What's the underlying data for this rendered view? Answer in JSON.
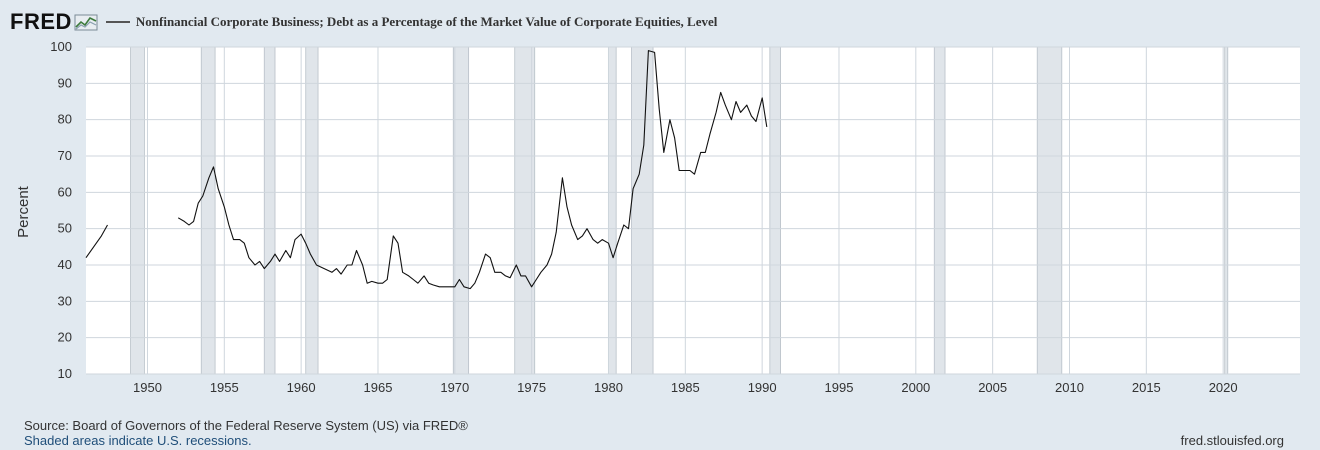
{
  "header": {
    "logo_text": "FRED",
    "logo_icon": "fred-chart-icon",
    "title": "Nonfinancial Corporate Business; Debt as a Percentage of the Market Value of Corporate Equities, Level"
  },
  "footer": {
    "source": "Source: Board of Governors of the Federal Reserve System (US) via FRED®",
    "recession_note": "Shaded areas indicate U.S. recessions.",
    "site": "fred.stlouisfed.org"
  },
  "colors": {
    "background": "#e1e9f0",
    "plot_bg": "#ffffff",
    "line": "#111111",
    "recession": "#e0e5ea",
    "grid": "#cfd6dd"
  },
  "chart_data": {
    "type": "line",
    "title": "Nonfinancial Corporate Business; Debt as a Percentage of the Market Value of Corporate Equities, Level",
    "xlabel": "",
    "ylabel": "Percent",
    "xlim": [
      1946,
      2025
    ],
    "ylim": [
      10,
      100
    ],
    "grid": true,
    "x_ticks": [
      1950,
      1955,
      1960,
      1965,
      1970,
      1975,
      1980,
      1985,
      1990,
      1995,
      2000,
      2005,
      2010,
      2015,
      2020
    ],
    "y_ticks": [
      10,
      20,
      30,
      40,
      50,
      60,
      70,
      80,
      90,
      100
    ],
    "recessions": [
      [
        1948.9,
        1949.8
      ],
      [
        1953.5,
        1954.4
      ],
      [
        1957.6,
        1958.3
      ],
      [
        1960.3,
        1961.1
      ],
      [
        1969.9,
        1970.9
      ],
      [
        1973.9,
        1975.2
      ],
      [
        1980.0,
        1980.5
      ],
      [
        1981.5,
        1982.9
      ],
      [
        1990.5,
        1991.2
      ],
      [
        2001.2,
        2001.9
      ],
      [
        2007.9,
        2009.5
      ],
      [
        2020.1,
        2020.3
      ]
    ],
    "series": [
      {
        "segments": [
          [
            [
              1946.0,
              42
            ],
            [
              1946.5,
              45
            ],
            [
              1947.0,
              48
            ],
            [
              1947.4,
              51
            ]
          ],
          [
            [
              1952.0,
              53
            ],
            [
              1952.4,
              52
            ],
            [
              1952.7,
              51
            ],
            [
              1953.0,
              52
            ],
            [
              1953.3,
              57
            ],
            [
              1953.6,
              59
            ],
            [
              1954.0,
              64
            ],
            [
              1954.3,
              67
            ],
            [
              1954.6,
              61
            ],
            [
              1955.0,
              56
            ],
            [
              1955.3,
              51
            ],
            [
              1955.6,
              47
            ],
            [
              1956.0,
              47
            ],
            [
              1956.3,
              46
            ],
            [
              1956.6,
              42
            ],
            [
              1957.0,
              40
            ],
            [
              1957.3,
              41
            ],
            [
              1957.6,
              39
            ],
            [
              1958.0,
              41
            ],
            [
              1958.3,
              43
            ],
            [
              1958.6,
              41
            ],
            [
              1959.0,
              44
            ],
            [
              1959.3,
              42
            ],
            [
              1959.6,
              47
            ],
            [
              1960.0,
              48.5
            ],
            [
              1960.3,
              46
            ],
            [
              1960.6,
              43
            ],
            [
              1961.0,
              40
            ],
            [
              1961.5,
              39
            ],
            [
              1962.0,
              38
            ],
            [
              1962.3,
              39
            ],
            [
              1962.6,
              37.5
            ],
            [
              1963.0,
              40
            ],
            [
              1963.3,
              40
            ],
            [
              1963.6,
              44
            ],
            [
              1964.0,
              40
            ],
            [
              1964.3,
              35
            ],
            [
              1964.6,
              35.5
            ],
            [
              1965.0,
              35
            ],
            [
              1965.3,
              35
            ],
            [
              1965.6,
              36
            ],
            [
              1966.0,
              48
            ],
            [
              1966.3,
              46
            ],
            [
              1966.6,
              38
            ],
            [
              1967.0,
              37
            ],
            [
              1967.3,
              36
            ],
            [
              1967.6,
              35
            ],
            [
              1968.0,
              37
            ],
            [
              1968.3,
              35
            ],
            [
              1968.6,
              34.5
            ],
            [
              1969.0,
              34
            ],
            [
              1969.5,
              34
            ],
            [
              1970.0,
              34
            ],
            [
              1970.3,
              36
            ],
            [
              1970.6,
              34
            ],
            [
              1971.0,
              33.5
            ],
            [
              1971.3,
              35
            ],
            [
              1971.6,
              38
            ],
            [
              1972.0,
              43
            ],
            [
              1972.3,
              42
            ],
            [
              1972.6,
              38
            ],
            [
              1973.0,
              38
            ],
            [
              1973.3,
              37
            ],
            [
              1973.6,
              36.5
            ],
            [
              1974.0,
              40
            ],
            [
              1974.3,
              37
            ],
            [
              1974.6,
              37
            ],
            [
              1975.0,
              34
            ],
            [
              1975.3,
              36
            ],
            [
              1975.6,
              38
            ],
            [
              1976.0,
              40
            ],
            [
              1976.3,
              43
            ],
            [
              1976.6,
              49
            ],
            [
              1977.0,
              64
            ],
            [
              1977.3,
              56
            ],
            [
              1977.6,
              51
            ],
            [
              1978.0,
              47
            ],
            [
              1978.3,
              48
            ],
            [
              1978.6,
              50
            ],
            [
              1979.0,
              47
            ],
            [
              1979.3,
              46
            ],
            [
              1979.6,
              47
            ],
            [
              1980.0,
              46
            ],
            [
              1980.3,
              42
            ],
            [
              1980.6,
              46
            ],
            [
              1981.0,
              51
            ],
            [
              1981.3,
              50
            ],
            [
              1981.6,
              61
            ],
            [
              1982.0,
              65
            ],
            [
              1982.3,
              73
            ],
            [
              1982.6,
              99
            ],
            [
              1983.0,
              98.5
            ],
            [
              1983.3,
              83
            ],
            [
              1983.6,
              71
            ],
            [
              1984.0,
              80
            ],
            [
              1984.3,
              75
            ],
            [
              1984.6,
              66
            ],
            [
              1985.0,
              66
            ],
            [
              1985.3,
              66
            ],
            [
              1985.6,
              65
            ],
            [
              1986.0,
              71
            ],
            [
              1986.3,
              71
            ],
            [
              1986.6,
              76
            ],
            [
              1987.0,
              82
            ],
            [
              1987.3,
              87.5
            ],
            [
              1987.6,
              84
            ],
            [
              1988.0,
              80
            ],
            [
              1988.3,
              85
            ],
            [
              1988.6,
              82
            ],
            [
              1989.0,
              84
            ],
            [
              1989.3,
              81
            ],
            [
              1989.6,
              79.5
            ],
            [
              1990.0,
              86
            ],
            [
              1990.3,
              78
            ]
          ]
        ]
      }
    ]
  }
}
